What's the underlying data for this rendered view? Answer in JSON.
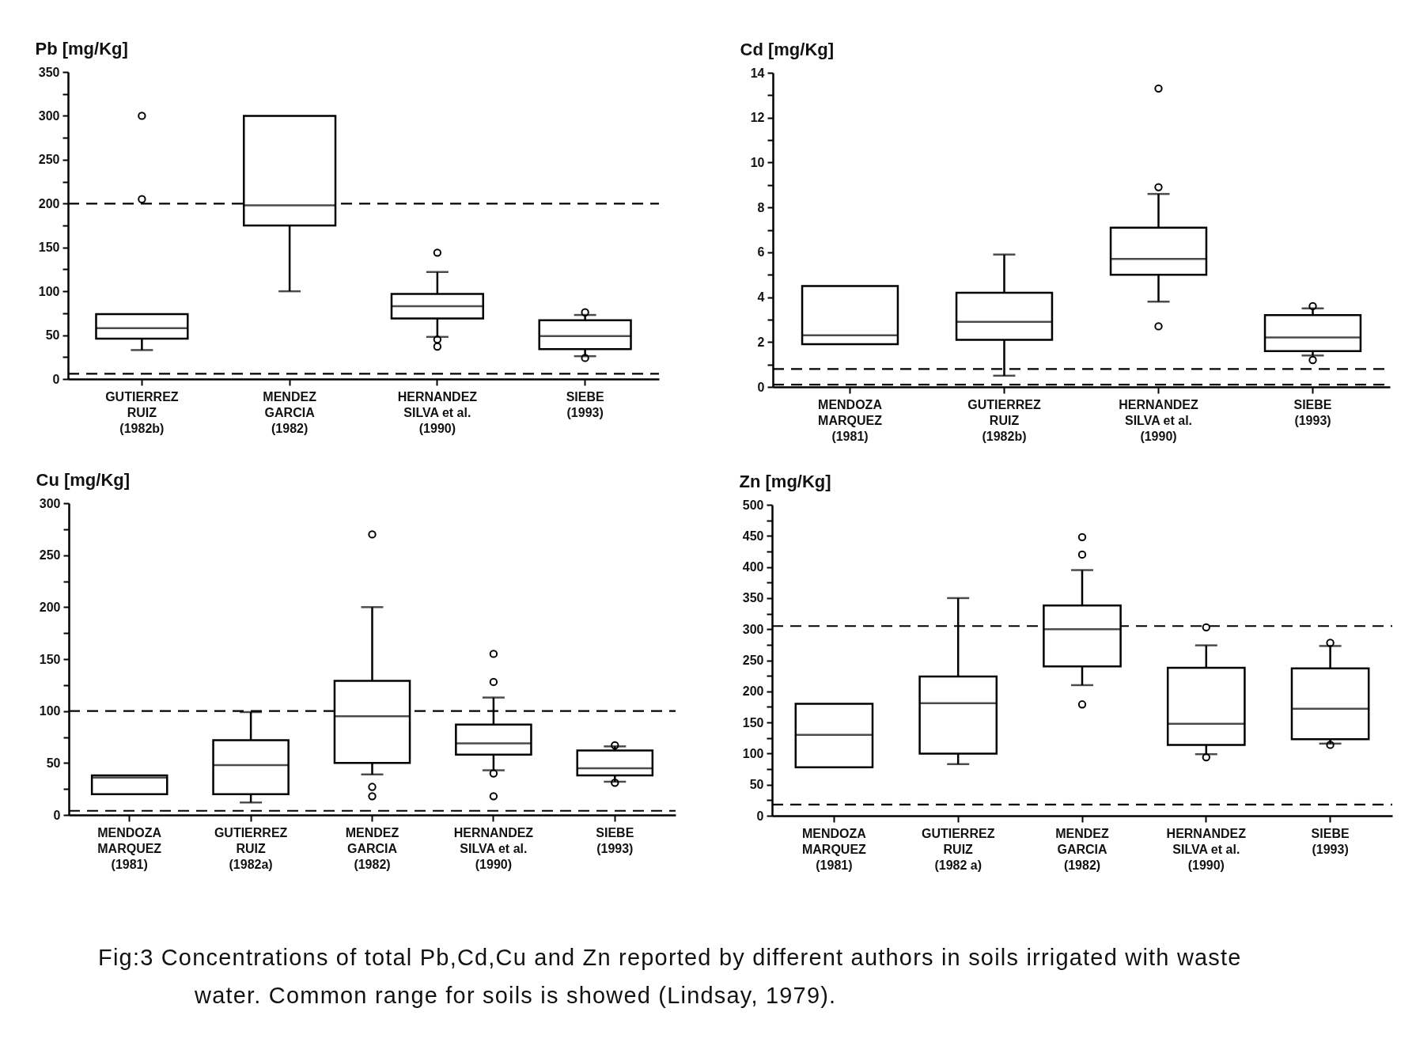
{
  "chart_data": [
    {
      "type": "box",
      "ylabel": "Pb [mg/Kg]",
      "categories": [
        "GUTIERREZ\nRUIZ\n(1982b)",
        "MENDEZ\nGARCIA\n(1982)",
        "HERNANDEZ\nSILVA et al.\n(1990)",
        "SIEBE\n(1993)"
      ],
      "boxes": [
        {
          "low": 33,
          "q1": 46,
          "median": 58,
          "q3": 74,
          "high": 74,
          "outliers": [
            205,
            300
          ]
        },
        {
          "low": 100,
          "q1": 175,
          "median": 198,
          "q3": 300,
          "high": 300
        },
        {
          "low": 48,
          "q1": 69,
          "median": 83,
          "q3": 97,
          "high": 122,
          "outliers": [
            144,
            45,
            37
          ]
        },
        {
          "low": 26,
          "q1": 34,
          "median": 49,
          "q3": 67,
          "high": 73,
          "outliers": [
            76,
            24
          ]
        }
      ],
      "ylim": [
        0,
        350
      ],
      "yticks": [
        0,
        {
          "value": 25,
          "label": null
        },
        50,
        {
          "value": 75,
          "label": null
        },
        100,
        {
          "value": 125,
          "label": null
        },
        150,
        {
          "value": 175,
          "label": null
        },
        200,
        {
          "value": 225,
          "label": null
        },
        250,
        {
          "value": 275,
          "label": null
        },
        300,
        {
          "value": 325,
          "label": null
        },
        350
      ],
      "ref_lines": [
        {
          "axis": "y",
          "value": 200,
          "color": "#000000",
          "line_style": "dashed"
        },
        {
          "axis": "y",
          "value": 6,
          "color": "#000000",
          "line_style": "dashed"
        }
      ]
    },
    {
      "type": "box",
      "ylabel": "Cd [mg/Kg]",
      "categories": [
        "MENDOZA\nMARQUEZ\n(1981)",
        "GUTIERREZ\nRUIZ\n(1982b)",
        "HERNANDEZ\nSILVA et al.\n(1990)",
        "SIEBE\n(1993)"
      ],
      "boxes": [
        {
          "low": 1.9,
          "q1": 1.9,
          "median": 2.3,
          "q3": 4.5,
          "high": 4.5
        },
        {
          "low": 0.5,
          "q1": 2.1,
          "median": 2.9,
          "q3": 4.2,
          "high": 5.9
        },
        {
          "low": 3.8,
          "q1": 5.0,
          "median": 5.7,
          "q3": 7.1,
          "high": 8.6,
          "outliers": [
            13.3,
            8.9,
            2.7
          ]
        },
        {
          "low": 1.4,
          "q1": 1.6,
          "median": 2.2,
          "q3": 3.2,
          "high": 3.5,
          "outliers": [
            3.6,
            1.2
          ]
        }
      ],
      "ylim": [
        0,
        14
      ],
      "yticks": [
        0,
        {
          "value": 1,
          "label": null
        },
        2,
        {
          "value": 3,
          "label": null
        },
        4,
        {
          "value": 5,
          "label": null
        },
        6,
        {
          "value": 7,
          "label": null
        },
        8,
        {
          "value": 9,
          "label": null
        },
        10,
        {
          "value": 11,
          "label": null
        },
        12,
        {
          "value": 13,
          "label": null
        },
        14
      ],
      "ref_lines": [
        {
          "axis": "y",
          "value": 0.8,
          "color": "#000000",
          "line_style": "dashed"
        },
        {
          "axis": "y",
          "value": 0.1,
          "color": "#000000",
          "line_style": "dashed"
        }
      ]
    },
    {
      "type": "box",
      "ylabel": "Cu [mg/Kg]",
      "categories": [
        "MENDOZA\nMARQUEZ\n(1981)",
        "GUTIERREZ\nRUIZ\n(1982a)",
        "MENDEZ\nGARCIA\n(1982)",
        "HERNANDEZ\nSILVA et al.\n(1990)",
        "SIEBE\n(1993)"
      ],
      "boxes": [
        {
          "low": 20,
          "q1": 20,
          "median": 36,
          "q3": 38,
          "high": 38
        },
        {
          "low": 12,
          "q1": 20,
          "median": 48,
          "q3": 72,
          "high": 99
        },
        {
          "low": 39,
          "q1": 50,
          "median": 95,
          "q3": 129,
          "high": 200,
          "outliers": [
            270,
            27,
            18
          ]
        },
        {
          "low": 43,
          "q1": 58,
          "median": 69,
          "q3": 87,
          "high": 113,
          "outliers": [
            155,
            128,
            40,
            18
          ]
        },
        {
          "low": 32,
          "q1": 38,
          "median": 45,
          "q3": 62,
          "high": 66,
          "outliers": [
            67,
            31
          ]
        }
      ],
      "ylim": [
        0,
        300
      ],
      "yticks": [
        0,
        {
          "value": 25,
          "label": null
        },
        50,
        {
          "value": 75,
          "label": null
        },
        100,
        {
          "value": 125,
          "label": null
        },
        150,
        {
          "value": 175,
          "label": null
        },
        200,
        {
          "value": 225,
          "label": null
        },
        250,
        {
          "value": 275,
          "label": null
        },
        300
      ],
      "ref_lines": [
        {
          "axis": "y",
          "value": 100,
          "color": "#000000",
          "line_style": "dashed"
        },
        {
          "axis": "y",
          "value": 4,
          "color": "#000000",
          "line_style": "dashed"
        }
      ]
    },
    {
      "type": "box",
      "ylabel": "Zn [mg/Kg]",
      "categories": [
        "MENDOZA\nMARQUEZ\n(1981)",
        "GUTIERREZ\nRUIZ\n(1982 a)",
        "MENDEZ\nGARCIA\n(1982)",
        "HERNANDEZ\nSILVA et al.\n(1990)",
        "SIEBE\n(1993)"
      ],
      "boxes": [
        {
          "low": 78,
          "q1": 78,
          "median": 130,
          "q3": 180,
          "high": 180
        },
        {
          "low": 83,
          "q1": 100,
          "median": 181,
          "q3": 224,
          "high": 350
        },
        {
          "low": 210,
          "q1": 240,
          "median": 300,
          "q3": 338,
          "high": 395,
          "outliers": [
            448,
            420,
            179
          ]
        },
        {
          "low": 99,
          "q1": 114,
          "median": 148,
          "q3": 238,
          "high": 274,
          "outliers": [
            303,
            94
          ]
        },
        {
          "low": 116,
          "q1": 123,
          "median": 172,
          "q3": 237,
          "high": 273,
          "outliers": [
            278,
            114
          ]
        }
      ],
      "ylim": [
        0,
        500
      ],
      "yticks": [
        0,
        {
          "value": 25,
          "label": null
        },
        50,
        {
          "value": 75,
          "label": null
        },
        100,
        {
          "value": 125,
          "label": null
        },
        150,
        {
          "value": 175,
          "label": null
        },
        200,
        {
          "value": 225,
          "label": null
        },
        250,
        {
          "value": 275,
          "label": null
        },
        300,
        {
          "value": 325,
          "label": null
        },
        350,
        {
          "value": 375,
          "label": null
        },
        400,
        {
          "value": 425,
          "label": null
        },
        450,
        {
          "value": 475,
          "label": null
        },
        500
      ],
      "ref_lines": [
        {
          "axis": "y",
          "value": 305,
          "color": "#000000",
          "line_style": "dashed"
        },
        {
          "axis": "y",
          "value": 18,
          "color": "#000000",
          "line_style": "dashed"
        }
      ],
      "annotations": [
        "Fig:3 Concentrations of total Pb,Cd,Cu and Zn reported by different authors in soils irrigated with waste water. Common range for soils is showed (Lindsay, 1979)."
      ]
    }
  ]
}
